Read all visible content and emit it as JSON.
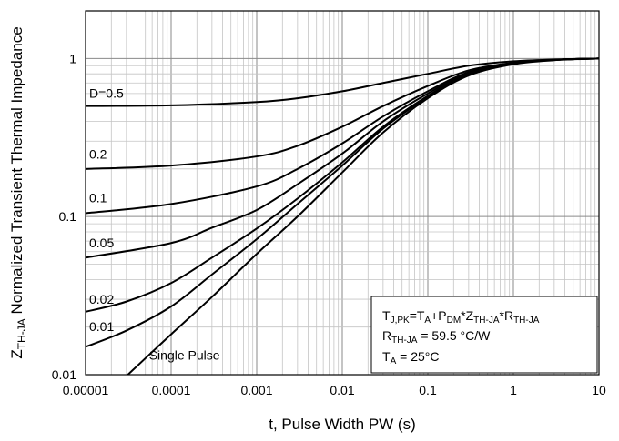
{
  "chart_data": {
    "type": "line",
    "title": "",
    "x_scale": "log",
    "y_scale": "log",
    "xlim": [
      1e-05,
      10
    ],
    "ylim": [
      0.01,
      2
    ],
    "xlabel": "t, Pulse Width PW (s)",
    "ylabel": {
      "main": "Z",
      "sub": "TH-JA",
      "rest": " Normalized Transient Thermal Impedance"
    },
    "x_ticks": [
      {
        "value": 1e-05,
        "label": "0.00001"
      },
      {
        "value": 0.0001,
        "label": "0.0001"
      },
      {
        "value": 0.001,
        "label": "0.001"
      },
      {
        "value": 0.01,
        "label": "0.01"
      },
      {
        "value": 0.1,
        "label": "0.1"
      },
      {
        "value": 1,
        "label": "1"
      },
      {
        "value": 10,
        "label": "10"
      }
    ],
    "y_ticks": [
      {
        "value": 0.01,
        "label": "0.01"
      },
      {
        "value": 0.1,
        "label": "0.1"
      },
      {
        "value": 1,
        "label": "1"
      }
    ],
    "series": [
      {
        "name": "D=0.5",
        "label": "D=0.5",
        "label_anchor": [
          1e-05,
          0.52
        ],
        "x": [
          1e-05,
          0.0001,
          0.001,
          0.003,
          0.01,
          0.03,
          0.1,
          0.3,
          1,
          3,
          10
        ],
        "y": [
          0.5,
          0.505,
          0.53,
          0.56,
          0.62,
          0.7,
          0.8,
          0.9,
          0.96,
          0.985,
          1.0
        ]
      },
      {
        "name": "0.2",
        "label": "0.2",
        "label_anchor": [
          1e-05,
          0.215
        ],
        "x": [
          1e-05,
          0.0001,
          0.001,
          0.003,
          0.01,
          0.03,
          0.1,
          0.3,
          1,
          3,
          10
        ],
        "y": [
          0.2,
          0.21,
          0.24,
          0.28,
          0.37,
          0.5,
          0.67,
          0.84,
          0.94,
          0.98,
          1.0
        ]
      },
      {
        "name": "0.1",
        "label": "0.1",
        "label_anchor": [
          1e-05,
          0.114
        ],
        "x": [
          1e-05,
          0.0001,
          0.001,
          0.003,
          0.01,
          0.03,
          0.1,
          0.3,
          1,
          3,
          10
        ],
        "y": [
          0.105,
          0.12,
          0.155,
          0.2,
          0.29,
          0.43,
          0.62,
          0.82,
          0.935,
          0.98,
          1.0
        ]
      },
      {
        "name": "0.05",
        "label": "0.05",
        "label_anchor": [
          1e-05,
          0.059
        ],
        "x": [
          1e-05,
          0.0001,
          0.0003,
          0.001,
          0.003,
          0.01,
          0.03,
          0.1,
          0.3,
          1,
          3,
          10
        ],
        "y": [
          0.055,
          0.068,
          0.085,
          0.11,
          0.16,
          0.25,
          0.4,
          0.6,
          0.81,
          0.93,
          0.98,
          1.0
        ]
      },
      {
        "name": "0.02",
        "label": "0.02",
        "label_anchor": [
          1e-05,
          0.026
        ],
        "x": [
          1e-05,
          3e-05,
          0.0001,
          0.0003,
          0.001,
          0.003,
          0.01,
          0.03,
          0.1,
          0.3,
          1,
          3,
          10
        ],
        "y": [
          0.025,
          0.029,
          0.038,
          0.055,
          0.084,
          0.13,
          0.22,
          0.37,
          0.58,
          0.8,
          0.93,
          0.98,
          1.0
        ]
      },
      {
        "name": "0.01",
        "label": "0.01",
        "label_anchor": [
          1e-05,
          0.0175
        ],
        "x": [
          1e-05,
          3e-05,
          0.0001,
          0.0003,
          0.001,
          0.003,
          0.01,
          0.03,
          0.1,
          0.3,
          1,
          3,
          10
        ],
        "y": [
          0.015,
          0.019,
          0.027,
          0.043,
          0.072,
          0.12,
          0.21,
          0.36,
          0.57,
          0.79,
          0.925,
          0.98,
          1.0
        ]
      },
      {
        "name": "Single Pulse",
        "label": "Single Pulse",
        "label_anchor": [
          5e-05,
          0.0115
        ],
        "x": [
          3e-05,
          0.0001,
          0.0003,
          0.001,
          0.003,
          0.01,
          0.03,
          0.1,
          0.3,
          1,
          3,
          10
        ],
        "y": [
          0.0098,
          0.018,
          0.031,
          0.058,
          0.1,
          0.19,
          0.34,
          0.56,
          0.78,
          0.92,
          0.975,
          1.0
        ]
      }
    ],
    "annotation": {
      "line1": {
        "T": "T",
        "jpk": "J,PK",
        "eq": "=T",
        "a": "A",
        "plus": "+P",
        "dm": "DM",
        "star1": "*Z",
        "thja1": "TH-JA",
        "star2": "*R",
        "thja2": "TH-JA"
      },
      "line2": {
        "R": "R",
        "thja": "TH-JA",
        "value": " = 59.5 °C/W"
      },
      "line3": {
        "T": "T",
        "a": "A",
        "value": " = 25°C"
      }
    }
  }
}
